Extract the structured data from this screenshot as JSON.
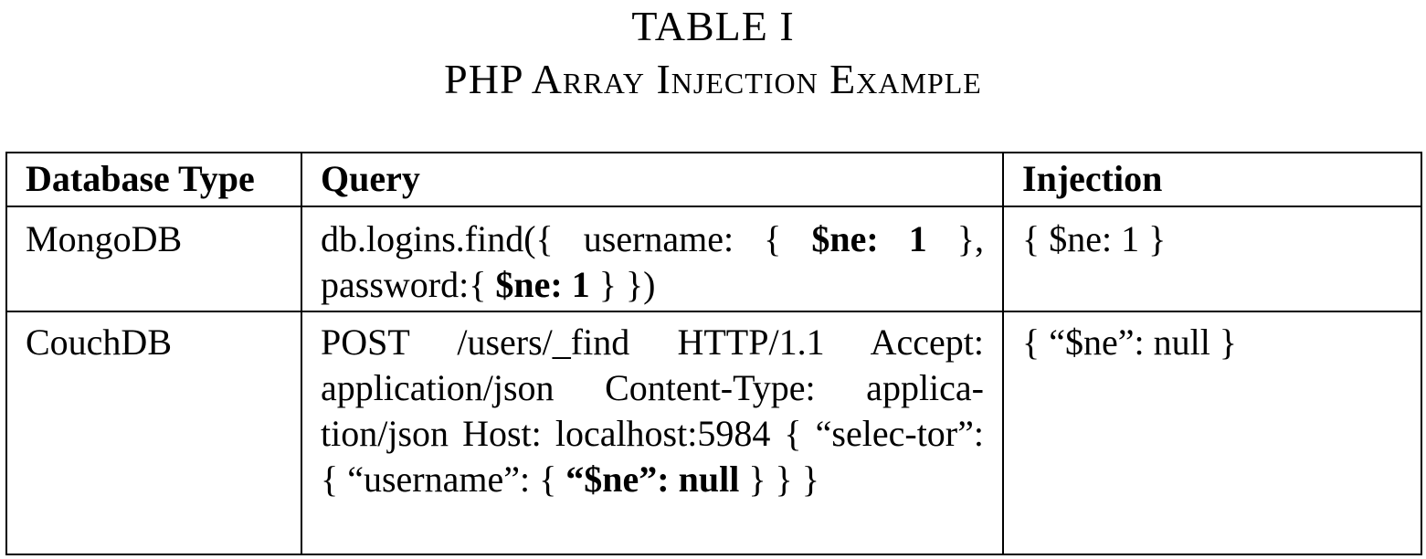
{
  "caption": {
    "number": "TABLE I",
    "title": "PHP Array Injection Example"
  },
  "table": {
    "headers": [
      "Database Type",
      "Query",
      "Injection"
    ],
    "rows": [
      {
        "database_type": "MongoDB",
        "query_parts": [
          "db.logins.find({ username: { ",
          "$ne: 1",
          " }, password:{ ",
          "$ne: 1",
          " } })"
        ],
        "injection": "{ $ne: 1 }"
      },
      {
        "database_type": "CouchDB",
        "query_parts": [
          "POST /users/_find HTTP/1.1 Accept: application/json Content-Type: applica-tion/json Host: localhost:5984 { “selec-tor”: { “username”: { ",
          "“$ne”: null",
          " } } }"
        ],
        "injection": "{ “$ne”: null }"
      }
    ]
  }
}
